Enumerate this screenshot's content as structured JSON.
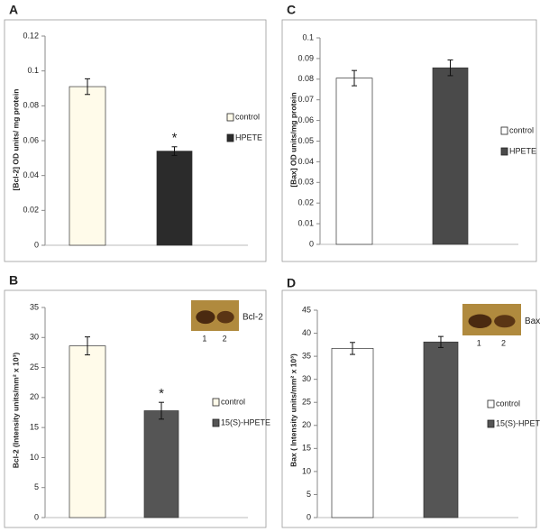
{
  "chart_data": [
    {
      "type": "bar",
      "panel": "A",
      "ylabel": "[Bcl-2] OD units/ mg protein",
      "ylim": [
        0,
        0.12
      ],
      "yticks": [
        0,
        0.02,
        0.04,
        0.06,
        0.08,
        0.1,
        0.12
      ],
      "series": [
        {
          "name": "control",
          "color": "#fffbea",
          "values": [
            0.091
          ],
          "errors": [
            0.0045
          ]
        },
        {
          "name": "HPETE",
          "color": "#2b2b2b",
          "values": [
            0.054
          ],
          "errors": [
            0.0025
          ],
          "annotation": "*"
        }
      ]
    },
    {
      "type": "bar",
      "panel": "B",
      "ylabel": "Bcl-2 (Intensity units/mm² x 10³)",
      "ylim": [
        0,
        35
      ],
      "yticks": [
        0,
        5,
        10,
        15,
        20,
        25,
        30,
        35
      ],
      "blot": {
        "label": "Bcl-2",
        "lanes": [
          "1",
          "2"
        ]
      },
      "series": [
        {
          "name": "control",
          "color": "#fffbea",
          "values": [
            28.6
          ],
          "errors": [
            1.5
          ]
        },
        {
          "name": "15(S)-HPETE",
          "color": "#555555",
          "values": [
            17.8
          ],
          "errors": [
            1.4
          ],
          "annotation": "*"
        }
      ]
    },
    {
      "type": "bar",
      "panel": "C",
      "ylabel": "[Bax] OD units/mg protein",
      "ylim": [
        0,
        0.1
      ],
      "yticks": [
        0,
        0.01,
        0.02,
        0.03,
        0.04,
        0.05,
        0.06,
        0.07,
        0.08,
        0.09,
        0.1
      ],
      "series": [
        {
          "name": "control",
          "color": "#ffffff",
          "values": [
            0.0805
          ],
          "errors": [
            0.0037
          ]
        },
        {
          "name": "HPETE",
          "color": "#4a4a4a",
          "values": [
            0.0855
          ],
          "errors": [
            0.0038
          ]
        }
      ]
    },
    {
      "type": "bar",
      "panel": "D",
      "ylabel": "Bax ( Intensity units/mm² x 10³)",
      "ylim": [
        0,
        45
      ],
      "yticks": [
        0,
        5,
        10,
        15,
        20,
        25,
        30,
        35,
        40,
        45
      ],
      "blot": {
        "label": "Bax",
        "lanes": [
          "1",
          "2"
        ]
      },
      "series": [
        {
          "name": "control",
          "color": "#ffffff",
          "values": [
            36.7
          ],
          "errors": [
            1.3
          ]
        },
        {
          "name": "15(S)-HPETE",
          "color": "#555555",
          "values": [
            38.1
          ],
          "errors": [
            1.2
          ]
        }
      ]
    }
  ]
}
